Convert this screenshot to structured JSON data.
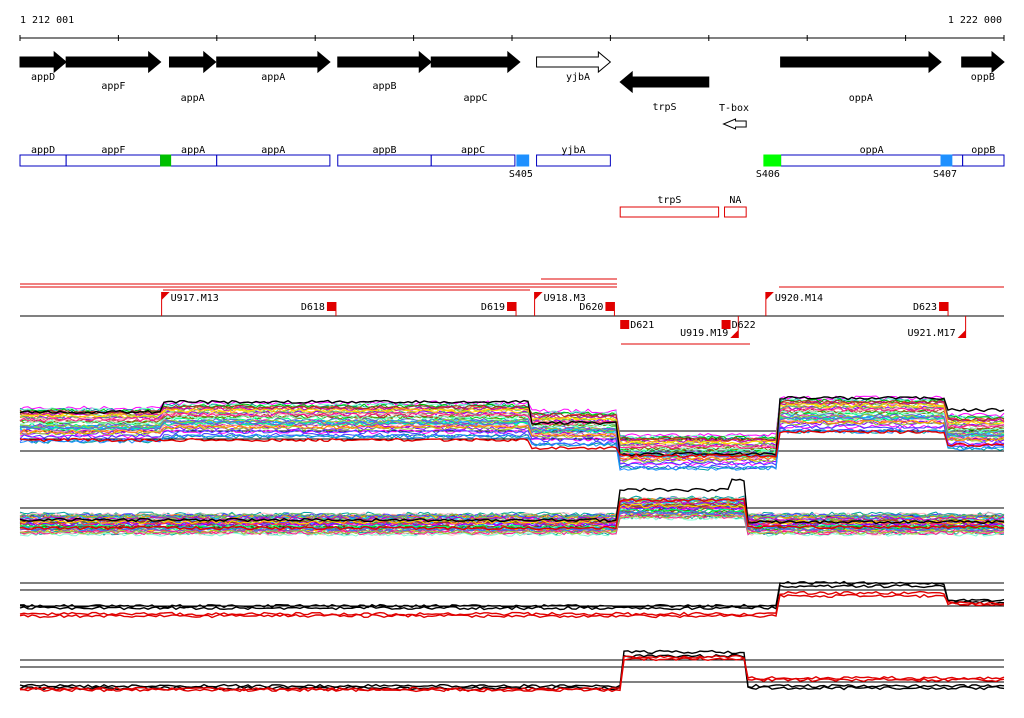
{
  "coordinates": {
    "start_label": "1 212 001",
    "end_label": "1 222 000",
    "start": 1212001,
    "end": 1222000
  },
  "genes": [
    {
      "name": "appD",
      "start": 1212001,
      "end": 1212470,
      "strand": "+",
      "filled": true,
      "label_row": 1
    },
    {
      "name": "appF",
      "start": 1212470,
      "end": 1213430,
      "strand": "+",
      "filled": true,
      "label_row": 2
    },
    {
      "name": "appA",
      "start": 1213520,
      "end": 1213990,
      "strand": "+",
      "filled": true,
      "label_row": 3
    },
    {
      "name": "appA",
      "start": 1214000,
      "end": 1215150,
      "strand": "+",
      "filled": true,
      "label_row": 1
    },
    {
      "name": "appB",
      "start": 1215230,
      "end": 1216180,
      "strand": "+",
      "filled": true,
      "label_row": 2
    },
    {
      "name": "appC",
      "start": 1216180,
      "end": 1217080,
      "strand": "+",
      "filled": true,
      "label_row": 3
    },
    {
      "name": "yjbA",
      "start": 1217250,
      "end": 1218000,
      "strand": "+",
      "filled": false,
      "label_row": 1
    },
    {
      "name": "trpS",
      "start": 1218100,
      "end": 1219000,
      "strand": "-",
      "filled": true,
      "label_row": 4
    },
    {
      "name": "T-box",
      "start": 1219150,
      "end": 1219380,
      "strand": "-",
      "filled": false,
      "label_row": 5
    },
    {
      "name": "oppA",
      "start": 1219730,
      "end": 1221360,
      "strand": "+",
      "filled": true,
      "label_row": 3
    },
    {
      "name": "oppB",
      "start": 1221570,
      "end": 1222000,
      "strand": "+",
      "filled": true,
      "label_row": 1
    }
  ],
  "transcripts_top": [
    {
      "name": "appD",
      "start": 1212001,
      "end": 1212470,
      "color": "#0000c0"
    },
    {
      "name": "appF",
      "start": 1212470,
      "end": 1213430,
      "color": "#0000c0"
    },
    {
      "name": "appA",
      "start": 1213520,
      "end": 1214000,
      "color": "#0000c0"
    },
    {
      "name": "appA",
      "start": 1214000,
      "end": 1215150,
      "color": "#0000c0"
    },
    {
      "name": "appB",
      "start": 1215230,
      "end": 1216180,
      "color": "#0000c0"
    },
    {
      "name": "appC",
      "start": 1216180,
      "end": 1217030,
      "color": "#0000c0"
    },
    {
      "name": "yjbA",
      "start": 1217250,
      "end": 1218000,
      "color": "#0000c0"
    },
    {
      "name": "oppA",
      "start": 1219730,
      "end": 1221580,
      "color": "#0000c0"
    },
    {
      "name": "oppB",
      "start": 1221580,
      "end": 1222000,
      "color": "#0000c0"
    }
  ],
  "transcripts_bottom": [
    {
      "name": "trpS",
      "start": 1218100,
      "end": 1219100,
      "color": "#e00000"
    },
    {
      "name": "NA",
      "start": 1219160,
      "end": 1219380,
      "color": "#e00000"
    }
  ],
  "boxes": [
    {
      "start": 1213430,
      "end": 1213520,
      "color": "#00c000"
    },
    {
      "start": 1217050,
      "end": 1217170,
      "color": "#1e90ff",
      "label": "S405"
    },
    {
      "start": 1219560,
      "end": 1219730,
      "color": "#00ff00",
      "label": "S406"
    },
    {
      "start": 1221360,
      "end": 1221470,
      "color": "#1e90ff",
      "label": "S407"
    }
  ],
  "segments": [
    {
      "label": "U917.M13",
      "pos": 1213440,
      "kind": "up-flag"
    },
    {
      "label": "D618",
      "pos": 1215120,
      "kind": "down-block"
    },
    {
      "label": "D619",
      "pos": 1216950,
      "kind": "down-block"
    },
    {
      "label": "U918.M3",
      "pos": 1217230,
      "kind": "up-flag"
    },
    {
      "label": "D620",
      "pos": 1217950,
      "kind": "down-block"
    },
    {
      "label": "D621",
      "pos": 1218100,
      "kind": "low-block"
    },
    {
      "label": "U919.M19",
      "pos": 1219300,
      "kind": "low-flag"
    },
    {
      "label": "D622",
      "pos": 1219130,
      "kind": "low-block"
    },
    {
      "label": "U920.M14",
      "pos": 1219580,
      "kind": "up-flag"
    },
    {
      "label": "D623",
      "pos": 1221340,
      "kind": "down-block"
    },
    {
      "label": "U921.M17",
      "pos": 1221610,
      "kind": "low-flag"
    }
  ]
}
